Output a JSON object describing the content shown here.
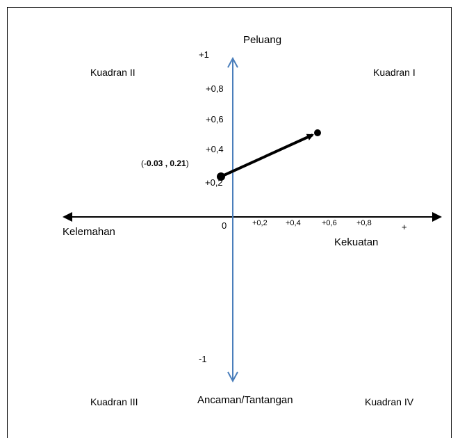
{
  "axes": {
    "top": "Peluang",
    "bottom": "Ancaman/Tantangan",
    "left": "Kelemahan",
    "right": "Kekuatan",
    "origin": "0",
    "x_plus": "+"
  },
  "quadrants": {
    "q1": "Kuadran I",
    "q2": "Kuadran II",
    "q3": "Kuadran III",
    "q4": "Kuadran IV"
  },
  "y_ticks": [
    "+1",
    "+0,8",
    "+0,6",
    "+0,4",
    "+0,2"
  ],
  "y_min_label": "-1",
  "x_ticks": [
    "+0,2",
    "+0,4",
    "+0,6",
    "+0,8"
  ],
  "point": {
    "open": "(-",
    "x": "0.03",
    "sep": " , ",
    "y": "0.21",
    "close": ")"
  },
  "colors": {
    "vertical_axis": "#4a7ebb",
    "horizontal_axis": "#000000",
    "vector": "#000000"
  }
}
